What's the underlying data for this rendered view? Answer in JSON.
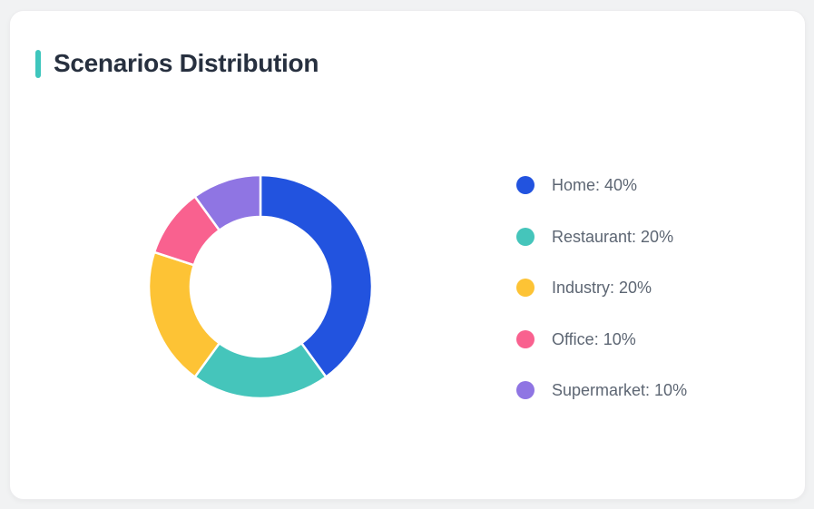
{
  "card": {
    "title": "Scenarios Distribution",
    "accent_color": "#3ec6bd"
  },
  "chart_data": {
    "type": "pie",
    "subtype": "donut",
    "title": "Scenarios Distribution",
    "categories": [
      "Home",
      "Restaurant",
      "Industry",
      "Office",
      "Supermarket"
    ],
    "values": [
      40,
      20,
      20,
      10,
      10
    ],
    "unit": "%",
    "colors": [
      "#2253df",
      "#45c5bb",
      "#fdc335",
      "#f9618f",
      "#8f75e3"
    ],
    "legend_labels": [
      "Home: 40%",
      "Restaurant: 20%",
      "Industry: 20%",
      "Office: 10%",
      "Supermarket: 10%"
    ],
    "legend_position": "right",
    "start_angle_deg": 0,
    "direction": "clockwise",
    "inner_radius_ratio": 0.63,
    "separator_color": "#ffffff"
  }
}
